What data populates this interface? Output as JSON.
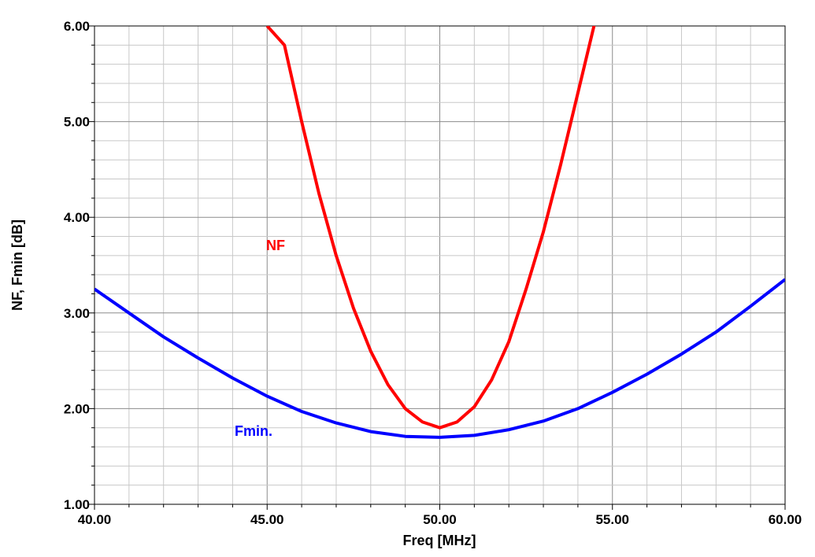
{
  "chart_data": {
    "type": "line",
    "xlabel": "Freq [MHz]",
    "ylabel": "NF, Fmin [dB]",
    "xlim": [
      40,
      60
    ],
    "ylim": [
      1,
      6
    ],
    "x_ticks": [
      "40.00",
      "45.00",
      "50.00",
      "55.00",
      "60.00"
    ],
    "y_ticks": [
      "1.00",
      "2.00",
      "3.00",
      "4.00",
      "5.00",
      "6.00"
    ],
    "grid": true,
    "series": [
      {
        "name": "NF",
        "color": "#ff0000",
        "x": [
          45.0,
          45.5,
          46.0,
          46.5,
          47.0,
          47.5,
          48.0,
          48.5,
          49.0,
          49.5,
          50.0,
          50.5,
          51.0,
          51.5,
          52.0,
          52.5,
          53.0,
          53.5,
          54.0,
          54.5
        ],
        "y": [
          6.0,
          5.8,
          5.0,
          4.25,
          3.6,
          3.05,
          2.6,
          2.25,
          2.0,
          1.86,
          1.8,
          1.86,
          2.02,
          2.3,
          2.7,
          3.25,
          3.85,
          4.55,
          5.3,
          6.05
        ]
      },
      {
        "name": "Fmin.",
        "color": "#0000ff",
        "x": [
          40,
          41,
          42,
          43,
          44,
          45,
          46,
          47,
          48,
          49,
          50,
          51,
          52,
          53,
          54,
          55,
          56,
          57,
          58,
          59,
          60
        ],
        "y": [
          3.25,
          3.0,
          2.75,
          2.53,
          2.32,
          2.13,
          1.97,
          1.85,
          1.76,
          1.71,
          1.7,
          1.72,
          1.78,
          1.87,
          2.0,
          2.17,
          2.36,
          2.57,
          2.8,
          3.07,
          3.35
        ]
      }
    ]
  }
}
